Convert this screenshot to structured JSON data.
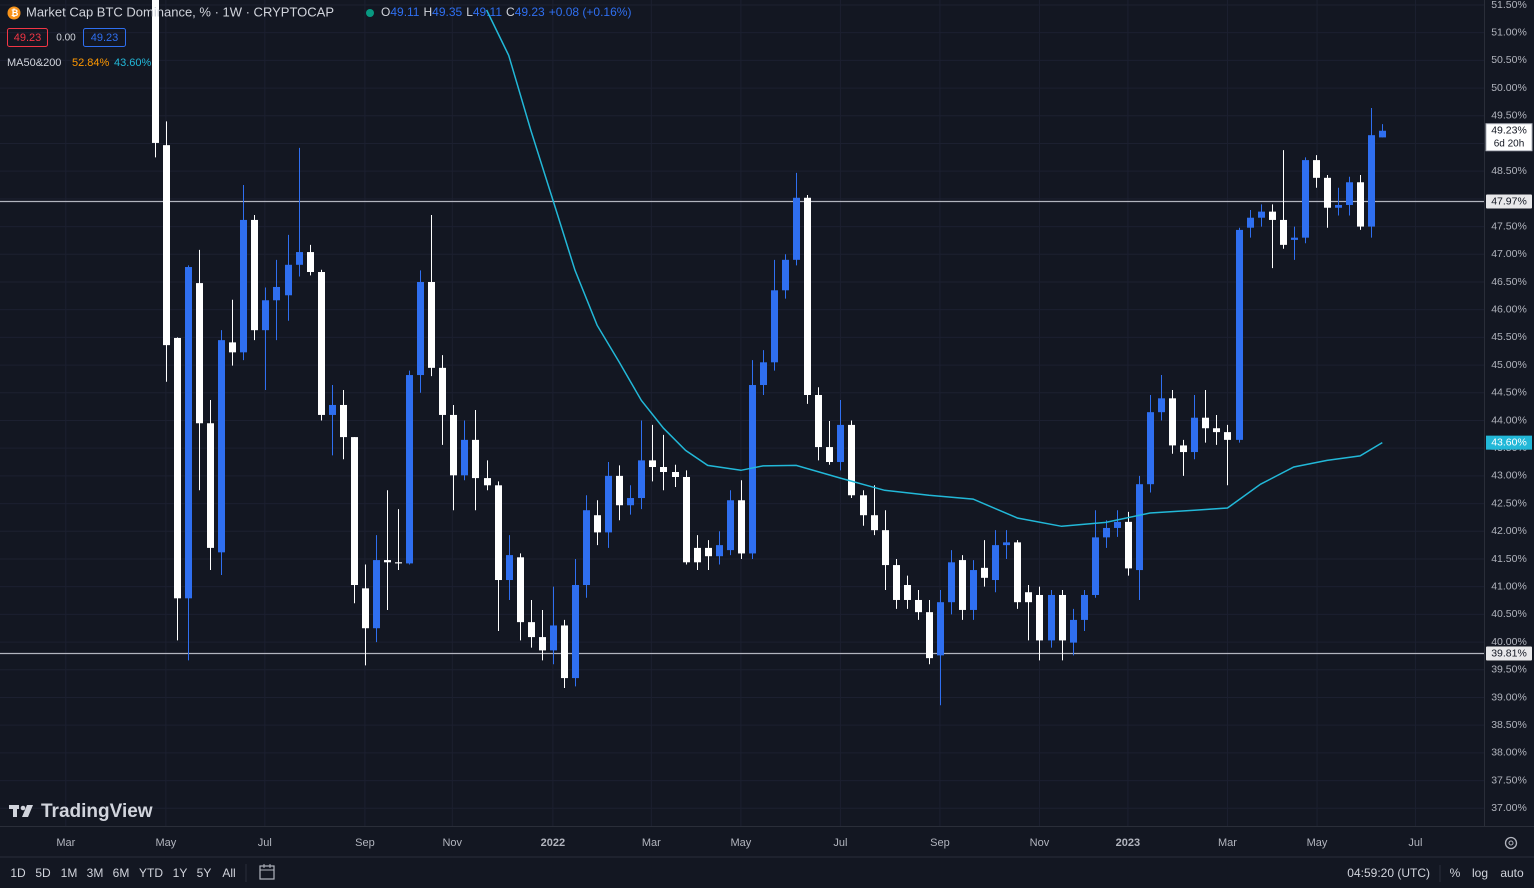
{
  "header": {
    "title": "Market Cap BTC Dominance, % · 1W · CRYPTOCAP",
    "ohlc": [
      {
        "label": "O",
        "value": "49.11"
      },
      {
        "label": "H",
        "value": "49.35"
      },
      {
        "label": "L",
        "value": "49.11"
      },
      {
        "label": "C",
        "value": "49.23"
      }
    ],
    "change": "+0.08 (+0.16%)"
  },
  "boxes": [
    "49.23",
    "0.00",
    "49.23"
  ],
  "indicator": {
    "name": "MA50&200",
    "values": [
      "52.84%",
      "43.60%"
    ]
  },
  "logo": "TradingView",
  "toolbar": {
    "ranges": [
      "1D",
      "5D",
      "1M",
      "3M",
      "6M",
      "YTD",
      "1Y",
      "5Y",
      "All"
    ],
    "time": "04:59:20 (UTC)",
    "buttons": [
      "%",
      "log",
      "auto"
    ]
  },
  "chart_data": {
    "type": "candlestick",
    "up_color": "#2f6ff0",
    "down_color": "#ffffff",
    "grid": true,
    "open": [
      52.6,
      48.97,
      45.49,
      40.79,
      46.48,
      43.95,
      41.62,
      45.41,
      45.23,
      47.62,
      45.63,
      46.17,
      46.26,
      46.81,
      47.04,
      46.68,
      44.1,
      44.28,
      43.7,
      40.97,
      40.25,
      41.48,
      41.44,
      41.42,
      44.82,
      46.5,
      44.95,
      44.1,
      43.01,
      43.65,
      42.96,
      42.83,
      41.12,
      41.53,
      40.36,
      40.09,
      39.85,
      40.3,
      39.35,
      41.03,
      42.29,
      41.98,
      43.0,
      42.47,
      42.6,
      43.28,
      43.16,
      43.07,
      42.98,
      41.7,
      41.7,
      41.55,
      41.66,
      42.56,
      41.6,
      44.64,
      45.05,
      46.35,
      46.9,
      48.02,
      44.46,
      43.52,
      43.25,
      43.92,
      42.65,
      42.29,
      42.02,
      41.39,
      41.03,
      40.76,
      40.54,
      39.76,
      40.72,
      41.48,
      40.58,
      41.34,
      41.12,
      41.75,
      41.8,
      40.9,
      40.85,
      40.03,
      40.85,
      39.99,
      40.4,
      40.85,
      41.89,
      42.06,
      42.17,
      41.3,
      42.85,
      44.15,
      44.4,
      43.55,
      43.43,
      44.05,
      43.86,
      43.79,
      43.65,
      47.48,
      47.66,
      47.77,
      47.62,
      47.26,
      47.3,
      48.7,
      48.38,
      47.84,
      47.89,
      48.3,
      47.5,
      49.11
    ],
    "high": [
      53.0,
      49.4,
      45.5,
      46.8,
      47.08,
      44.37,
      45.63,
      46.18,
      48.25,
      47.71,
      46.4,
      46.9,
      47.35,
      48.92,
      47.17,
      46.72,
      44.64,
      44.55,
      43.7,
      41.4,
      41.93,
      42.74,
      42.4,
      44.9,
      46.71,
      47.71,
      45.18,
      44.28,
      44.0,
      44.19,
      43.28,
      42.9,
      41.93,
      41.6,
      40.76,
      40.58,
      41.0,
      40.4,
      41.5,
      42.65,
      42.56,
      43.25,
      43.19,
      42.83,
      44.0,
      43.92,
      43.74,
      43.2,
      43.1,
      41.93,
      41.84,
      42.0,
      42.74,
      42.92,
      45.09,
      45.27,
      46.9,
      47.0,
      48.47,
      48.07,
      44.6,
      43.99,
      44.37,
      44.0,
      42.74,
      42.83,
      42.38,
      41.5,
      41.2,
      40.94,
      40.76,
      40.94,
      41.66,
      41.57,
      41.48,
      41.84,
      42.02,
      42.02,
      41.84,
      41.03,
      41.0,
      40.94,
      40.94,
      40.6,
      40.94,
      42.38,
      42.2,
      42.38,
      42.35,
      43.0,
      44.46,
      44.82,
      44.55,
      43.65,
      44.46,
      44.55,
      44.1,
      43.92,
      47.48,
      47.8,
      47.9,
      47.9,
      48.88,
      47.5,
      48.75,
      48.79,
      48.43,
      48.2,
      48.4,
      48.43,
      49.64,
      49.35
    ],
    "low": [
      48.75,
      44.7,
      40.03,
      39.67,
      42.74,
      41.3,
      41.21,
      44.99,
      45.09,
      45.45,
      44.55,
      45.45,
      45.8,
      46.6,
      46.62,
      44.0,
      43.37,
      43.3,
      40.7,
      39.58,
      40.0,
      40.58,
      41.3,
      41.4,
      44.5,
      44.8,
      43.56,
      42.38,
      42.92,
      42.38,
      42.74,
      40.2,
      40.76,
      40.03,
      39.9,
      39.67,
      39.6,
      39.17,
      39.2,
      40.8,
      41.75,
      41.7,
      42.2,
      42.3,
      42.4,
      42.9,
      42.74,
      42.8,
      41.4,
      41.3,
      41.3,
      41.4,
      41.57,
      41.5,
      41.5,
      44.46,
      44.9,
      46.2,
      46.8,
      44.3,
      43.28,
      43.2,
      43.1,
      42.6,
      42.1,
      41.93,
      40.94,
      40.6,
      40.6,
      40.4,
      39.6,
      38.86,
      40.5,
      40.4,
      40.4,
      41.0,
      40.9,
      41.5,
      40.6,
      40.03,
      39.67,
      39.9,
      39.67,
      39.76,
      40.2,
      40.8,
      41.7,
      41.9,
      41.2,
      40.76,
      42.7,
      44.0,
      43.4,
      43.0,
      43.3,
      43.6,
      43.56,
      42.83,
      43.6,
      47.3,
      47.5,
      46.75,
      47.1,
      46.9,
      47.2,
      48.2,
      47.48,
      47.7,
      47.7,
      47.44,
      47.3,
      49.11
    ],
    "close": [
      49.01,
      45.36,
      40.79,
      46.77,
      43.95,
      41.7,
      45.45,
      45.23,
      47.62,
      45.63,
      46.17,
      46.41,
      46.81,
      47.04,
      46.68,
      44.1,
      44.28,
      43.7,
      41.03,
      40.25,
      41.48,
      41.44,
      41.42,
      44.82,
      46.5,
      44.95,
      44.1,
      43.01,
      43.65,
      42.96,
      42.83,
      41.12,
      41.57,
      40.36,
      40.09,
      39.85,
      40.3,
      39.35,
      41.03,
      42.38,
      41.98,
      43.0,
      42.47,
      42.6,
      43.28,
      43.16,
      43.07,
      42.98,
      41.44,
      41.44,
      41.55,
      41.75,
      42.56,
      41.6,
      44.64,
      45.05,
      46.35,
      46.9,
      48.02,
      44.46,
      43.52,
      43.25,
      43.92,
      42.65,
      42.29,
      42.02,
      41.39,
      40.76,
      40.76,
      40.54,
      39.71,
      40.72,
      41.44,
      40.58,
      41.3,
      41.16,
      41.75,
      41.8,
      40.72,
      40.72,
      40.03,
      40.85,
      40.03,
      40.4,
      40.85,
      41.89,
      42.06,
      42.17,
      41.33,
      42.85,
      44.15,
      44.4,
      43.55,
      43.43,
      44.05,
      43.86,
      43.79,
      43.65,
      47.44,
      47.66,
      47.77,
      47.62,
      47.17,
      47.3,
      48.7,
      48.38,
      47.84,
      47.89,
      48.3,
      47.5,
      49.15,
      49.23
    ],
    "series": [
      {
        "color": "#22b8d8",
        "x": [
          30,
          32,
          34,
          36,
          38,
          40,
          42,
          44,
          46,
          48,
          50,
          53,
          55,
          58,
          62,
          66,
          70,
          74,
          78,
          82,
          86,
          90,
          94,
          97,
          100,
          103,
          106,
          109,
          111
        ],
        "values": [
          51.41,
          50.59,
          49.24,
          47.98,
          46.71,
          45.72,
          45.05,
          44.36,
          43.86,
          43.46,
          43.19,
          43.1,
          43.18,
          43.19,
          42.96,
          42.74,
          42.65,
          42.58,
          42.24,
          42.09,
          42.16,
          42.33,
          42.38,
          42.42,
          42.85,
          43.16,
          43.28,
          43.36,
          43.6
        ]
      }
    ],
    "hlines": [
      {
        "value": 47.97,
        "label": "47.97%"
      },
      {
        "value": 39.81,
        "label": "39.81%"
      }
    ],
    "last_price": {
      "value": 49.23,
      "label": "49.23%",
      "countdown": "6d 20h"
    },
    "ma_price": {
      "value": 43.6,
      "label": "43.60%"
    },
    "xlim": [
      -14.0,
      120.2
    ],
    "xticks": [
      {
        "value": -8.05,
        "label": "Mar"
      },
      {
        "value": 1.0,
        "label": "May"
      },
      {
        "value": 9.95,
        "label": "Jul"
      },
      {
        "value": 19.0,
        "label": "Sep"
      },
      {
        "value": 26.9,
        "label": "Nov"
      },
      {
        "value": 36.0,
        "label": "2022"
      },
      {
        "value": 44.9,
        "label": "Mar"
      },
      {
        "value": 53.0,
        "label": "May"
      },
      {
        "value": 62.0,
        "label": "Jul"
      },
      {
        "value": 71.0,
        "label": "Sep"
      },
      {
        "value": 80.0,
        "label": "Nov"
      },
      {
        "value": 88.0,
        "label": "2023"
      },
      {
        "value": 97.0,
        "label": "Mar"
      },
      {
        "value": 105.1,
        "label": "May"
      },
      {
        "value": 114.0,
        "label": "Jul"
      }
    ],
    "ylim": [
      36.68,
      51.59
    ],
    "yticks": [
      {
        "value": 37,
        "label": "37.00%"
      },
      {
        "value": 37.5,
        "label": "37.50%"
      },
      {
        "value": 38,
        "label": "38.00%"
      },
      {
        "value": 38.5,
        "label": "38.50%"
      },
      {
        "value": 39,
        "label": "39.00%"
      },
      {
        "value": 39.5,
        "label": "39.50%"
      },
      {
        "value": 40,
        "label": "40.00%"
      },
      {
        "value": 40.5,
        "label": "40.50%"
      },
      {
        "value": 41,
        "label": "41.00%"
      },
      {
        "value": 41.5,
        "label": "41.50%"
      },
      {
        "value": 42,
        "label": "42.00%"
      },
      {
        "value": 42.5,
        "label": "42.50%"
      },
      {
        "value": 43,
        "label": "43.00%"
      },
      {
        "value": 43.5,
        "label": "43.50%"
      },
      {
        "value": 44,
        "label": "44.00%"
      },
      {
        "value": 44.5,
        "label": "44.50%"
      },
      {
        "value": 45,
        "label": "45.00%"
      },
      {
        "value": 45.5,
        "label": "45.50%"
      },
      {
        "value": 46,
        "label": "46.00%"
      },
      {
        "value": 46.5,
        "label": "46.50%"
      },
      {
        "value": 47,
        "label": "47.00%"
      },
      {
        "value": 47.5,
        "label": "47.50%"
      },
      {
        "value": 48,
        "label": "48.00%"
      },
      {
        "value": 48.5,
        "label": "48.50%"
      },
      {
        "value": 49,
        "label": "49.00%"
      },
      {
        "value": 49.5,
        "label": "49.50%"
      },
      {
        "value": 50,
        "label": "50.00%"
      },
      {
        "value": 50.5,
        "label": "50.50%"
      },
      {
        "value": 51,
        "label": "51.00%"
      },
      {
        "value": 51.5,
        "label": "51.50%"
      }
    ]
  }
}
